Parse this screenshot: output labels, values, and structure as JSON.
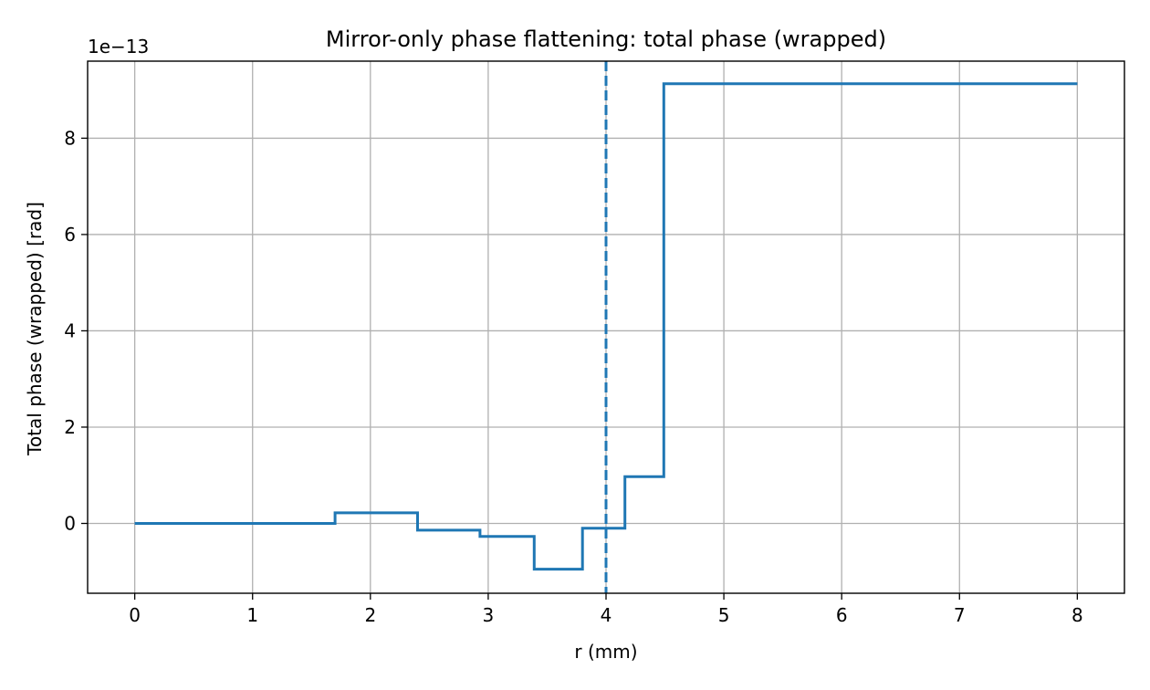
{
  "chart_data": {
    "type": "line",
    "title": "Mirror-only phase flattening: total phase (wrapped)",
    "xlabel": "r (mm)",
    "ylabel": "Total phase (wrapped) [rad]",
    "y_offset_label": "1e−13",
    "xlim": [
      -0.4,
      8.4
    ],
    "ylim": [
      -1.45,
      9.6
    ],
    "x_ticks": [
      0,
      1,
      2,
      3,
      4,
      5,
      6,
      7,
      8
    ],
    "y_ticks": [
      0,
      2,
      4,
      6,
      8
    ],
    "grid": true,
    "line_color": "#1f77b4",
    "series": [
      {
        "step": true,
        "x": [
          0,
          1.7,
          1.7,
          2.4,
          2.4,
          2.93,
          2.93,
          3.39,
          3.39,
          3.8,
          3.8,
          4.16,
          4.16,
          4.49,
          4.49,
          8.0
        ],
        "y": [
          0,
          0,
          0.22,
          0.22,
          -0.14,
          -0.14,
          -0.27,
          -0.27,
          -0.95,
          -0.95,
          -0.1,
          -0.1,
          0.97,
          0.97,
          9.13,
          9.13
        ]
      }
    ],
    "vline": {
      "x": 4.0,
      "style": "dashed"
    }
  }
}
